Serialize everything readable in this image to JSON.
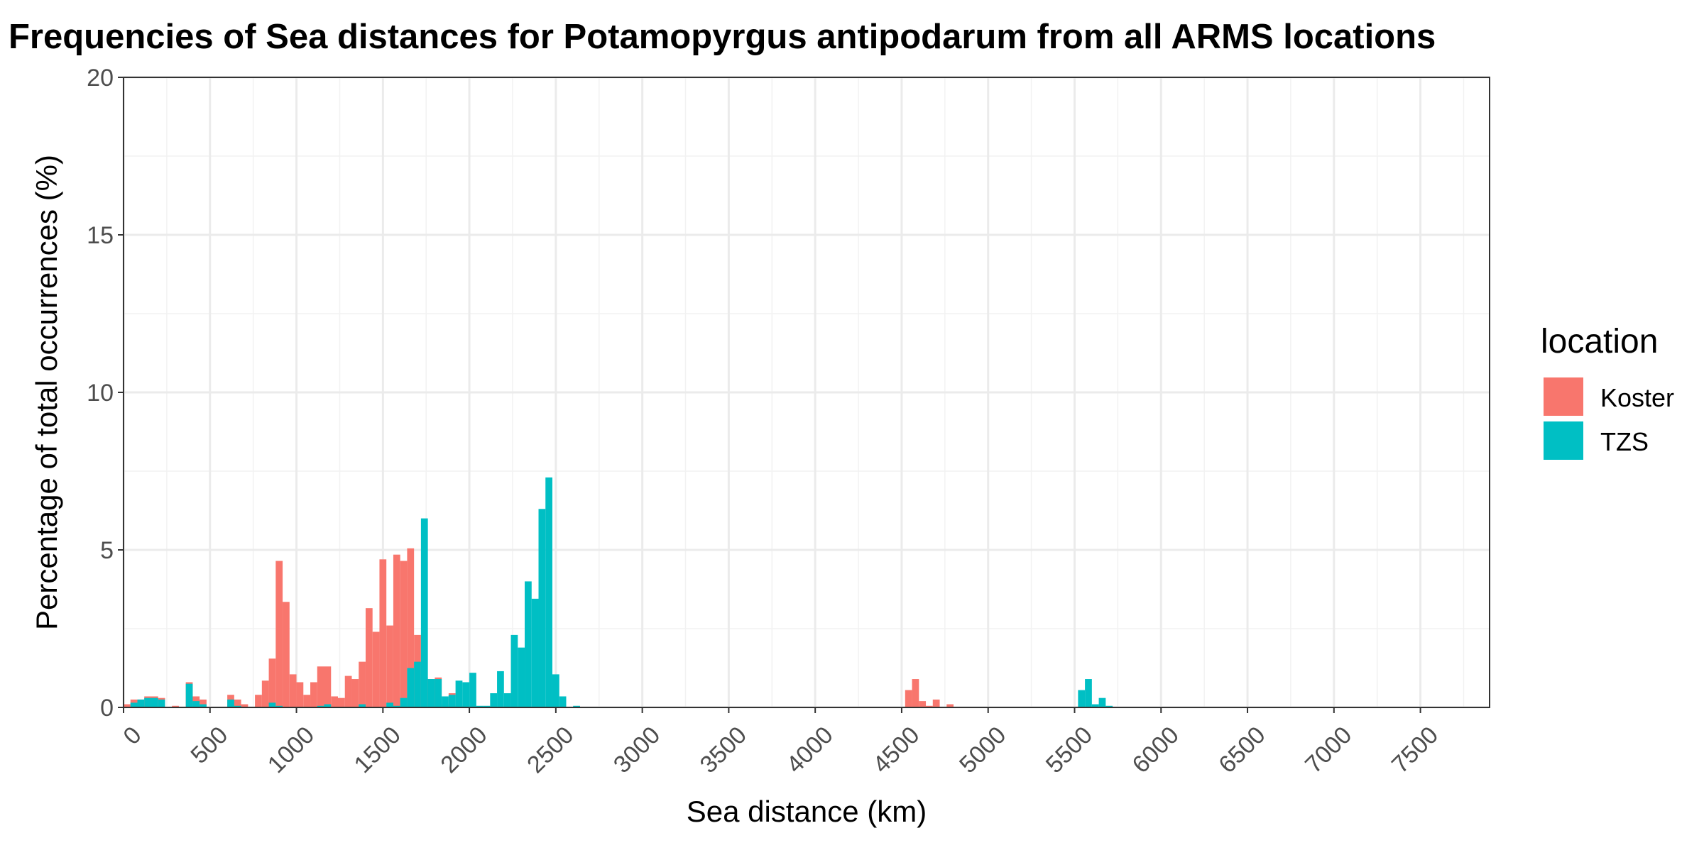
{
  "chart_data": {
    "type": "bar",
    "title": "Frequencies of Sea distances for Potamopyrgus antipodarum from all ARMS locations",
    "xlabel": "Sea distance (km)",
    "ylabel": "Percentage of total occurrences (%)",
    "xlim": [
      0,
      7900
    ],
    "ylim": [
      0,
      20
    ],
    "x_ticks": [
      0,
      500,
      1000,
      1500,
      2000,
      2500,
      3000,
      3500,
      4000,
      4500,
      5000,
      5500,
      6000,
      6500,
      7000,
      7500
    ],
    "y_ticks": [
      0,
      5,
      10,
      15,
      20
    ],
    "bin_width": 40,
    "grid": true,
    "legend_title": "location",
    "legend_position": "right",
    "series": [
      {
        "name": "Koster",
        "color": "#F8766D",
        "values": [
          [
            20,
            0.1
          ],
          [
            60,
            0.25
          ],
          [
            100,
            0.25
          ],
          [
            140,
            0.35
          ],
          [
            180,
            0.35
          ],
          [
            220,
            0.3
          ],
          [
            300,
            0.05
          ],
          [
            380,
            0.8
          ],
          [
            420,
            0.35
          ],
          [
            460,
            0.25
          ],
          [
            620,
            0.4
          ],
          [
            660,
            0.25
          ],
          [
            700,
            0.1
          ],
          [
            780,
            0.4
          ],
          [
            820,
            0.85
          ],
          [
            860,
            1.55
          ],
          [
            900,
            4.65
          ],
          [
            940,
            3.35
          ],
          [
            980,
            1.05
          ],
          [
            1020,
            0.8
          ],
          [
            1060,
            0.4
          ],
          [
            1100,
            0.8
          ],
          [
            1140,
            1.3
          ],
          [
            1180,
            1.3
          ],
          [
            1220,
            0.35
          ],
          [
            1260,
            0.3
          ],
          [
            1300,
            1.0
          ],
          [
            1340,
            0.9
          ],
          [
            1380,
            1.45
          ],
          [
            1420,
            3.15
          ],
          [
            1460,
            2.4
          ],
          [
            1500,
            4.7
          ],
          [
            1540,
            2.6
          ],
          [
            1580,
            4.85
          ],
          [
            1620,
            4.65
          ],
          [
            1660,
            5.05
          ],
          [
            1700,
            2.3
          ],
          [
            1740,
            0.95
          ],
          [
            1780,
            0.9
          ],
          [
            1820,
            0.95
          ],
          [
            1860,
            0.1
          ],
          [
            1900,
            0.45
          ],
          [
            1940,
            0.05
          ],
          [
            4540,
            0.55
          ],
          [
            4580,
            0.9
          ],
          [
            4620,
            0.2
          ],
          [
            4660,
            0.05
          ],
          [
            4700,
            0.25
          ],
          [
            4780,
            0.1
          ]
        ]
      },
      {
        "name": "TZS",
        "color": "#00BFC4",
        "values": [
          [
            60,
            0.15
          ],
          [
            100,
            0.25
          ],
          [
            140,
            0.3
          ],
          [
            180,
            0.3
          ],
          [
            220,
            0.25
          ],
          [
            380,
            0.75
          ],
          [
            420,
            0.2
          ],
          [
            460,
            0.1
          ],
          [
            620,
            0.25
          ],
          [
            660,
            0.05
          ],
          [
            860,
            0.15
          ],
          [
            900,
            0.05
          ],
          [
            1140,
            0.05
          ],
          [
            1180,
            0.1
          ],
          [
            1380,
            0.1
          ],
          [
            1540,
            0.15
          ],
          [
            1580,
            0.05
          ],
          [
            1620,
            0.3
          ],
          [
            1660,
            1.25
          ],
          [
            1700,
            1.45
          ],
          [
            1740,
            6.0
          ],
          [
            1780,
            0.9
          ],
          [
            1820,
            0.9
          ],
          [
            1860,
            0.35
          ],
          [
            1900,
            0.4
          ],
          [
            1940,
            0.85
          ],
          [
            1980,
            0.8
          ],
          [
            2020,
            1.1
          ],
          [
            2060,
            0.05
          ],
          [
            2100,
            0.05
          ],
          [
            2140,
            0.45
          ],
          [
            2180,
            1.15
          ],
          [
            2220,
            0.45
          ],
          [
            2260,
            2.3
          ],
          [
            2300,
            1.9
          ],
          [
            2340,
            4.0
          ],
          [
            2380,
            3.45
          ],
          [
            2420,
            6.3
          ],
          [
            2460,
            7.3
          ],
          [
            2500,
            1.05
          ],
          [
            2540,
            0.35
          ],
          [
            2620,
            0.05
          ],
          [
            5540,
            0.55
          ],
          [
            5580,
            0.9
          ],
          [
            5620,
            0.1
          ],
          [
            5660,
            0.3
          ],
          [
            5700,
            0.05
          ]
        ]
      }
    ]
  }
}
